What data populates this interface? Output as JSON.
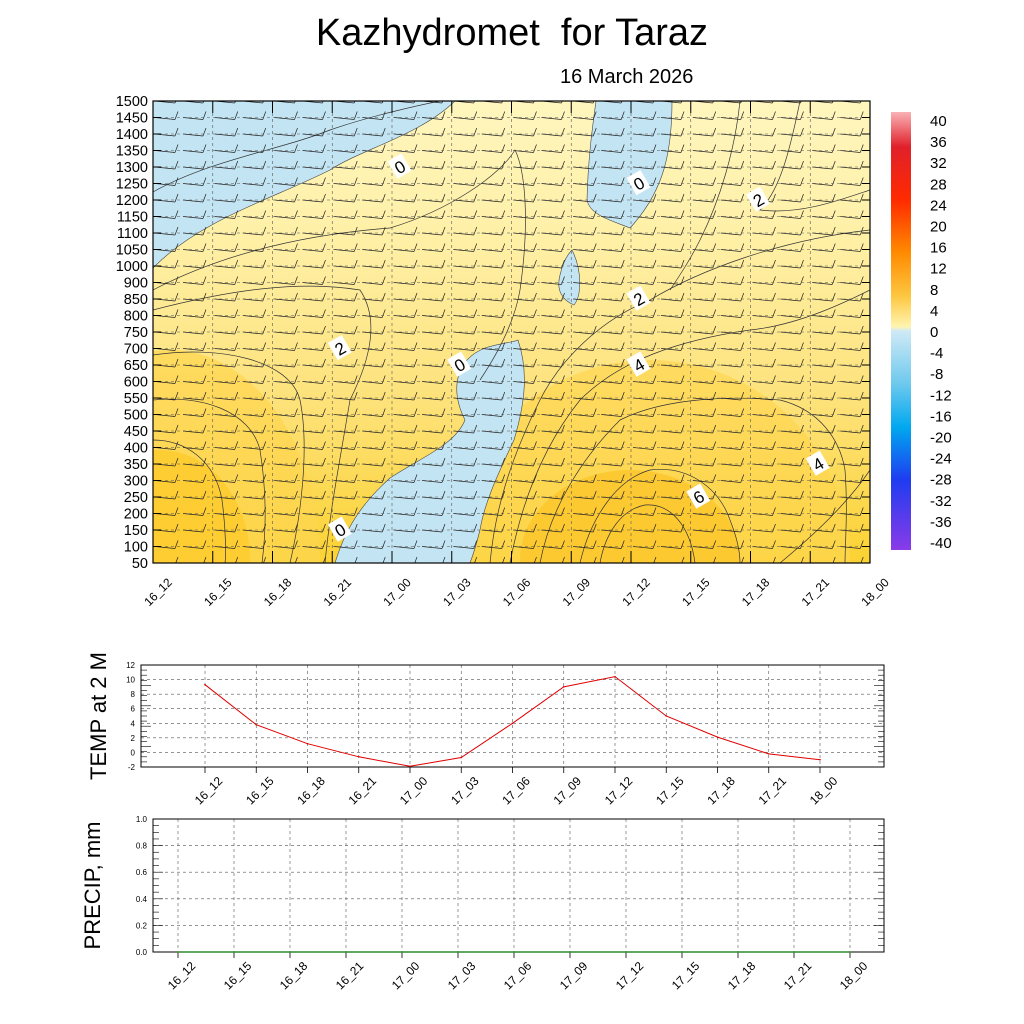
{
  "header": {
    "title": "Kazhydromet  for Taraz",
    "subtitle": "16 March 2026"
  },
  "time_labels": [
    "16_12",
    "16_15",
    "16_18",
    "16_21",
    "17_00",
    "17_03",
    "17_06",
    "17_09",
    "17_12",
    "17_15",
    "17_18",
    "17_21",
    "18_00"
  ],
  "chart_data": [
    {
      "type": "heatmap",
      "x": [
        "16_12",
        "16_15",
        "16_18",
        "16_21",
        "17_00",
        "17_03",
        "17_06",
        "17_09",
        "17_12",
        "17_15",
        "17_18",
        "17_21",
        "18_00"
      ],
      "y_ticks": [
        50,
        100,
        150,
        200,
        250,
        300,
        350,
        400,
        450,
        500,
        550,
        600,
        650,
        700,
        750,
        800,
        850,
        900,
        1000,
        1050,
        1100,
        1150,
        1200,
        1250,
        1300,
        1350,
        1400,
        1450,
        1500
      ],
      "ylim": [
        50,
        1500
      ],
      "colorbar": {
        "levels": [
          40,
          36,
          32,
          28,
          24,
          20,
          16,
          12,
          8,
          4,
          0,
          -4,
          -8,
          -12,
          -16,
          -20,
          -24,
          -28,
          -32,
          -36,
          -40
        ],
        "colors": {
          "warm_max": "#f7a1a8",
          "hot": "#e0002a",
          "orange": "#ff7a00",
          "yellow": "#fff2a6",
          "cold_min": "#8a2be2",
          "ice": "#c8e6f4"
        }
      },
      "contour_labels": [
        {
          "text": "0",
          "x": "17_00",
          "y": 1300
        },
        {
          "text": "0",
          "x": "17_12",
          "y": 1250
        },
        {
          "text": "2",
          "x": "17_18",
          "y": 1200
        },
        {
          "text": "2",
          "x": "17_12",
          "y": 850
        },
        {
          "text": "2",
          "x": "16_21",
          "y": 700
        },
        {
          "text": "0",
          "x": "17_03",
          "y": 650
        },
        {
          "text": "4",
          "x": "17_12",
          "y": 650
        },
        {
          "text": "4",
          "x": "17_21",
          "y": 350
        },
        {
          "text": "6",
          "x": "17_15",
          "y": 250
        },
        {
          "text": "0",
          "x": "16_21",
          "y": 150
        }
      ]
    },
    {
      "type": "line",
      "ylabel": "TEMP at 2 M",
      "x": [
        "16_12",
        "16_15",
        "16_18",
        "16_21",
        "17_00",
        "17_03",
        "17_06",
        "17_09",
        "17_12",
        "17_15",
        "17_18",
        "17_21",
        "18_00"
      ],
      "values": [
        9.3,
        3.8,
        1.2,
        -0.6,
        -1.9,
        -0.7,
        4.0,
        9.0,
        10.4,
        5.0,
        2.1,
        -0.2,
        -1.0
      ],
      "ylim": [
        -2,
        12
      ],
      "y_ticks": [
        -2,
        0,
        2,
        4,
        6,
        8,
        10,
        12
      ],
      "color": "#e00000"
    },
    {
      "type": "line",
      "ylabel": "PRECIP, mm",
      "x": [
        "16_12",
        "16_15",
        "16_18",
        "16_21",
        "17_00",
        "17_03",
        "17_06",
        "17_09",
        "17_12",
        "17_15",
        "17_18",
        "17_21",
        "18_00"
      ],
      "values": [
        0,
        0,
        0,
        0,
        0,
        0,
        0,
        0,
        0,
        0,
        0,
        0,
        0
      ],
      "ylim": [
        0,
        1
      ],
      "y_ticks": [
        "0.0",
        "0.2",
        "0.4",
        "0.6",
        "0.8",
        "1.0"
      ],
      "color": "#2e8b2e"
    }
  ]
}
